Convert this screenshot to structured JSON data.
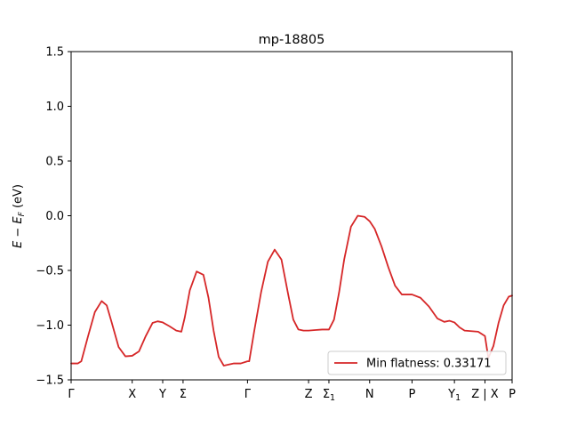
{
  "chart_data": {
    "type": "line",
    "title": "mp-18805",
    "ylabel": "E − E_F (eV)",
    "ylim": [
      -1.5,
      1.5
    ],
    "xlim": [
      0,
      13.0
    ],
    "y_ticks": [
      -1.5,
      -1.0,
      -0.5,
      0.0,
      0.5,
      1.0,
      1.5
    ],
    "y_tick_labels": [
      "−1.5",
      "−1.0",
      "−0.5",
      "0.0",
      "0.5",
      "1.0",
      "1.5"
    ],
    "x_ticks": [
      {
        "x": 0.0,
        "label": "Γ"
      },
      {
        "x": 1.8,
        "label": "X"
      },
      {
        "x": 2.7,
        "label": "Y"
      },
      {
        "x": 3.3,
        "label": "Σ"
      },
      {
        "x": 5.2,
        "label": "Γ"
      },
      {
        "x": 7.0,
        "label": "Z"
      },
      {
        "x": 7.6,
        "label": "Σ1"
      },
      {
        "x": 8.8,
        "label": "N"
      },
      {
        "x": 10.05,
        "label": "P"
      },
      {
        "x": 11.3,
        "label": "Y1"
      },
      {
        "x": 12.2,
        "label": "Z | X"
      },
      {
        "x": 13.0,
        "label": "P"
      }
    ],
    "legend": {
      "position": "lower right",
      "entries": [
        "Min flatness: 0.33171"
      ]
    },
    "grid": false,
    "series": [
      {
        "name": "Min flatness: 0.33171",
        "color": "#d62728",
        "x": [
          0.0,
          0.2,
          0.3,
          0.5,
          0.7,
          0.9,
          1.05,
          1.2,
          1.4,
          1.6,
          1.8,
          2.0,
          2.2,
          2.4,
          2.55,
          2.7,
          2.9,
          3.1,
          3.25,
          3.35,
          3.5,
          3.7,
          3.9,
          4.05,
          4.2,
          4.35,
          4.5,
          4.65,
          4.8,
          5.0,
          5.2,
          5.25,
          5.4,
          5.6,
          5.8,
          6.0,
          6.2,
          6.4,
          6.55,
          6.7,
          6.85,
          7.0,
          7.2,
          7.4,
          7.6,
          7.75,
          7.9,
          8.05,
          8.25,
          8.45,
          8.65,
          8.8,
          8.95,
          9.15,
          9.35,
          9.55,
          9.75,
          9.9,
          10.05,
          10.3,
          10.55,
          10.8,
          11.0,
          11.15,
          11.3,
          11.45,
          11.6,
          11.8,
          12.0,
          12.2,
          12.3,
          12.45,
          12.6,
          12.75,
          12.9,
          13.0
        ],
        "y": [
          -1.35,
          -1.35,
          -1.33,
          -1.1,
          -0.88,
          -0.78,
          -0.82,
          -0.98,
          -1.2,
          -1.285,
          -1.28,
          -1.24,
          -1.1,
          -0.98,
          -0.965,
          -0.975,
          -1.01,
          -1.05,
          -1.06,
          -0.93,
          -0.68,
          -0.51,
          -0.54,
          -0.75,
          -1.05,
          -1.29,
          -1.37,
          -1.36,
          -1.35,
          -1.35,
          -1.33,
          -1.33,
          -1.05,
          -0.7,
          -0.42,
          -0.31,
          -0.4,
          -0.72,
          -0.95,
          -1.04,
          -1.05,
          -1.05,
          -1.045,
          -1.04,
          -1.04,
          -0.95,
          -0.7,
          -0.4,
          -0.1,
          0.0,
          -0.01,
          -0.05,
          -0.12,
          -0.28,
          -0.47,
          -0.64,
          -0.72,
          -0.72,
          -0.72,
          -0.75,
          -0.83,
          -0.94,
          -0.97,
          -0.96,
          -0.975,
          -1.02,
          -1.05,
          -1.055,
          -1.06,
          -1.1,
          -1.3,
          -1.19,
          -0.98,
          -0.82,
          -0.74,
          -0.73
        ]
      }
    ]
  }
}
